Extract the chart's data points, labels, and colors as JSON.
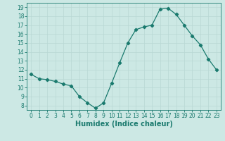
{
  "x": [
    0,
    1,
    2,
    3,
    4,
    5,
    6,
    7,
    8,
    9,
    10,
    11,
    12,
    13,
    14,
    15,
    16,
    17,
    18,
    19,
    20,
    21,
    22,
    23
  ],
  "y": [
    11.5,
    11.0,
    10.9,
    10.7,
    10.4,
    10.2,
    9.0,
    8.3,
    7.7,
    8.3,
    10.5,
    12.8,
    15.0,
    16.5,
    16.8,
    17.0,
    18.8,
    18.9,
    18.2,
    17.0,
    15.8,
    14.8,
    13.2,
    12.0
  ],
  "xlabel": "Humidex (Indice chaleur)",
  "ylim": [
    7.5,
    19.5
  ],
  "xlim": [
    -0.5,
    23.5
  ],
  "yticks": [
    8,
    9,
    10,
    11,
    12,
    13,
    14,
    15,
    16,
    17,
    18,
    19
  ],
  "xticks": [
    0,
    1,
    2,
    3,
    4,
    5,
    6,
    7,
    8,
    9,
    10,
    11,
    12,
    13,
    14,
    15,
    16,
    17,
    18,
    19,
    20,
    21,
    22,
    23
  ],
  "line_color": "#1a7a6e",
  "marker": "D",
  "marker_size": 2.2,
  "bg_color": "#cce8e4",
  "grid_color": "#b8d8d4",
  "xlabel_fontsize": 7,
  "tick_fontsize": 5.5
}
